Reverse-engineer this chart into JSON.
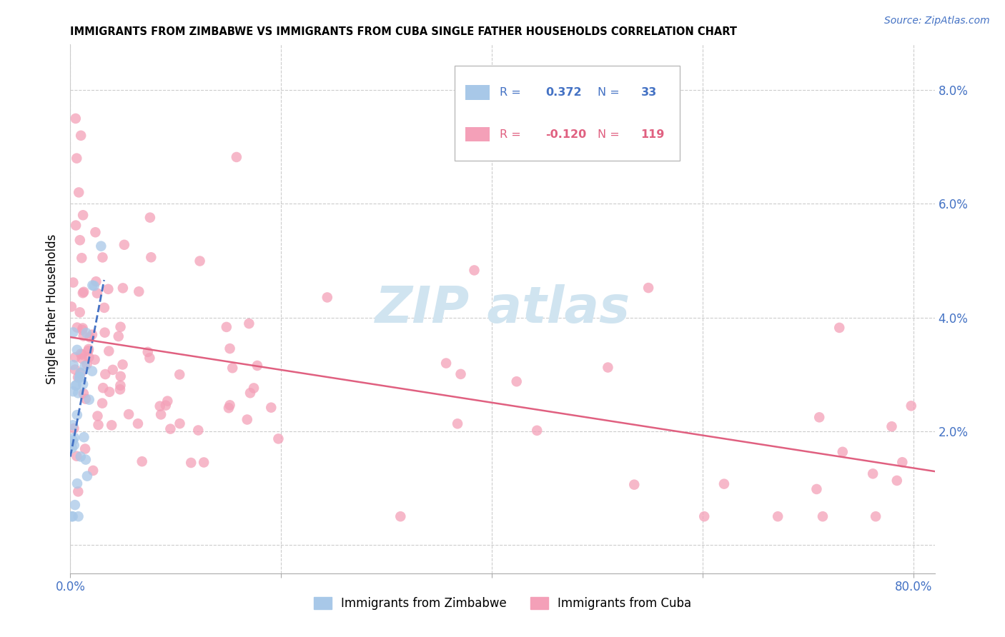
{
  "title": "IMMIGRANTS FROM ZIMBABWE VS IMMIGRANTS FROM CUBA SINGLE FATHER HOUSEHOLDS CORRELATION CHART",
  "source": "Source: ZipAtlas.com",
  "ylabel": "Single Father Households",
  "color_zimbabwe": "#a8c8e8",
  "color_cuba": "#f4a0b8",
  "color_trendline_zimbabwe": "#4472c4",
  "color_trendline_cuba": "#e06080",
  "watermark_color": "#d0e4f0",
  "title_fontsize": 10.5,
  "source_fontsize": 10,
  "tick_color": "#4472c4",
  "grid_color": "#cccccc",
  "xlim": [
    0.0,
    0.82
  ],
  "ylim": [
    -0.005,
    0.088
  ],
  "ytick_vals": [
    0.0,
    0.02,
    0.04,
    0.06,
    0.08
  ],
  "ytick_labels": [
    "",
    "2.0%",
    "4.0%",
    "6.0%",
    "8.0%"
  ],
  "xtick_vals": [
    0.0,
    0.2,
    0.4,
    0.6,
    0.8
  ],
  "xtick_labels": [
    "0.0%",
    "",
    "",
    "",
    "80.0%"
  ],
  "legend_R1": "0.372",
  "legend_N1": "33",
  "legend_R2": "-0.120",
  "legend_N2": "119"
}
